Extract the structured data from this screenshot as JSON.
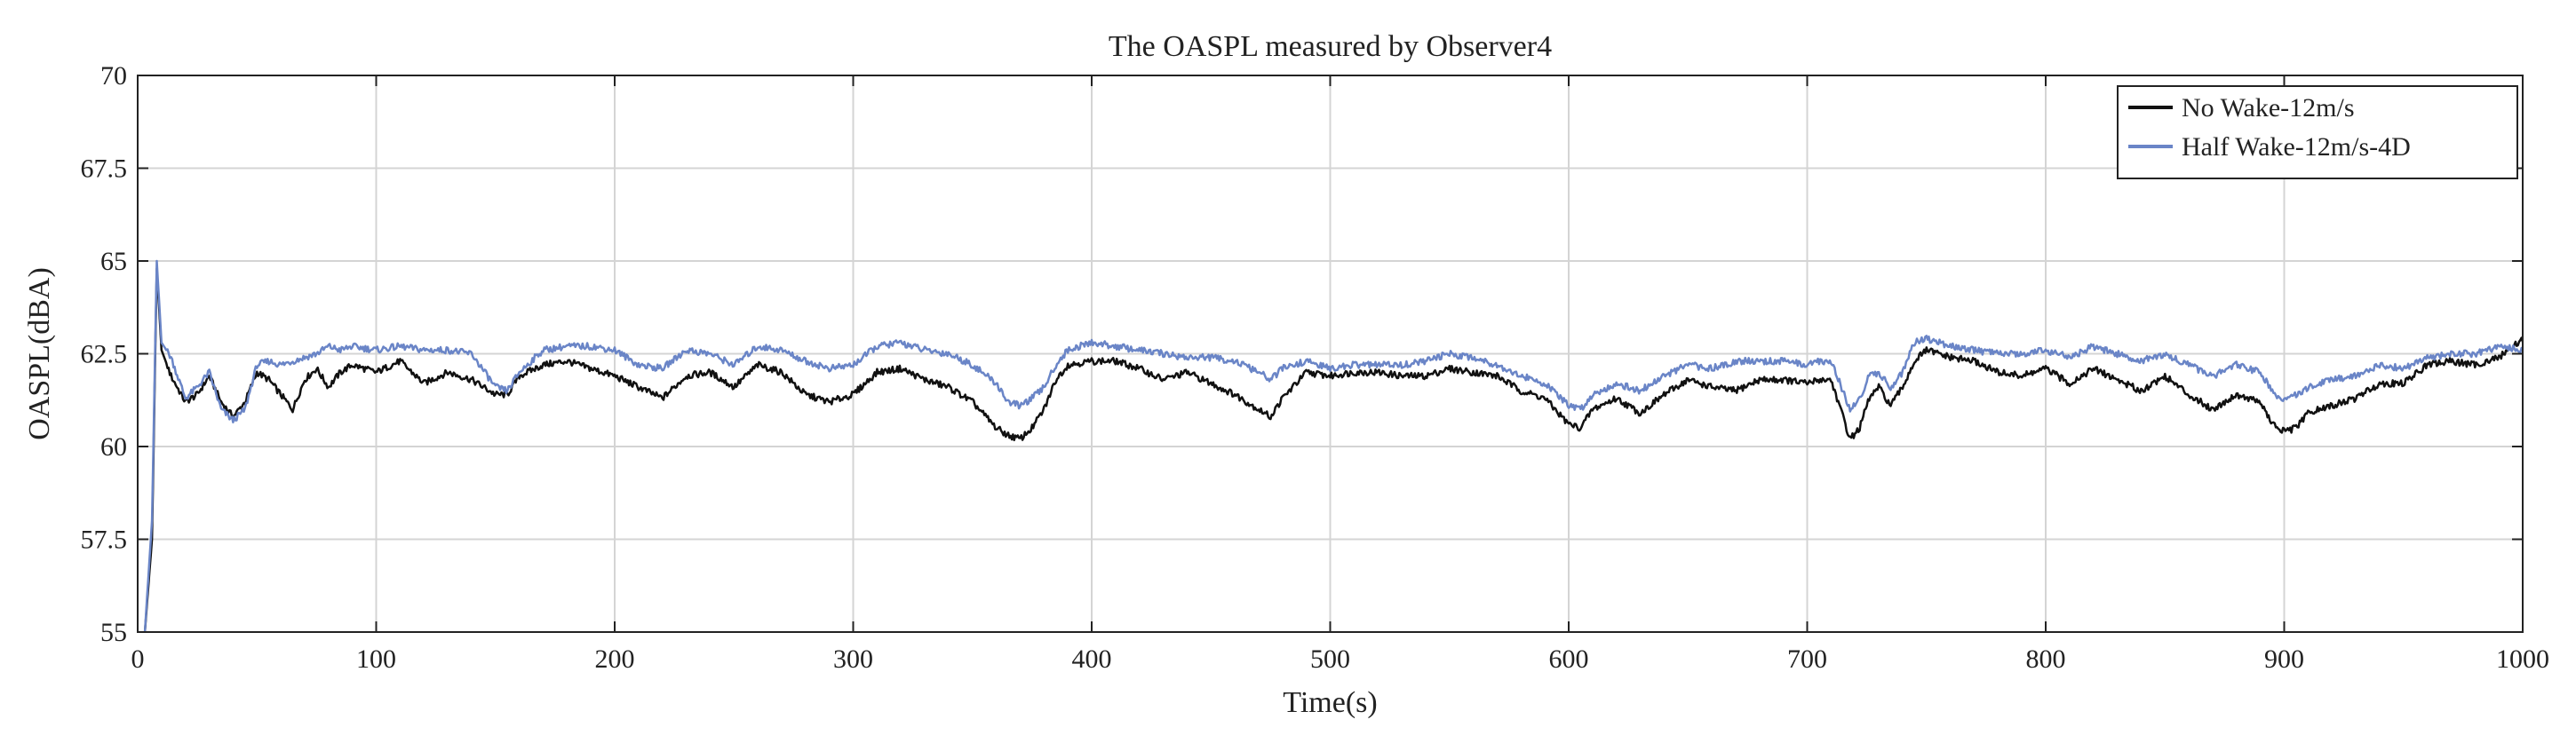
{
  "chart_data": {
    "type": "line",
    "title": "The OASPL measured by Observer4",
    "xlabel": "Time(s)",
    "ylabel": "OASPL(dBA)",
    "xlim": [
      0,
      1000
    ],
    "ylim": [
      55,
      70
    ],
    "xticks": [
      0,
      100,
      200,
      300,
      400,
      500,
      600,
      700,
      800,
      900,
      1000
    ],
    "yticks": [
      55,
      57.5,
      60,
      62.5,
      65,
      67.5,
      70
    ],
    "xtick_labels": [
      "0",
      "100",
      "200",
      "300",
      "400",
      "500",
      "600",
      "700",
      "800",
      "900",
      "1000"
    ],
    "ytick_labels": [
      "55",
      "57.5",
      "60",
      "62.5",
      "65",
      "67.5",
      "70"
    ],
    "grid": true,
    "legend_position": "top-right",
    "series": [
      {
        "name": "No Wake-12m/s",
        "color": "#111111",
        "x": [
          3,
          6,
          8,
          10,
          14,
          20,
          25,
          30,
          35,
          40,
          45,
          50,
          55,
          60,
          65,
          70,
          75,
          80,
          85,
          90,
          100,
          110,
          120,
          130,
          140,
          150,
          155,
          160,
          170,
          180,
          190,
          200,
          210,
          220,
          230,
          240,
          250,
          260,
          270,
          280,
          290,
          300,
          310,
          320,
          330,
          340,
          350,
          360,
          365,
          370,
          375,
          380,
          385,
          390,
          400,
          410,
          420,
          430,
          440,
          450,
          460,
          470,
          475,
          480,
          490,
          500,
          510,
          520,
          530,
          540,
          550,
          560,
          570,
          580,
          590,
          600,
          605,
          610,
          620,
          630,
          640,
          650,
          660,
          670,
          680,
          690,
          700,
          705,
          710,
          715,
          718,
          722,
          726,
          730,
          735,
          740,
          745,
          750,
          760,
          770,
          780,
          790,
          800,
          810,
          820,
          830,
          840,
          850,
          860,
          870,
          880,
          890,
          895,
          900,
          905,
          910,
          920,
          930,
          940,
          950,
          960,
          970,
          980,
          990,
          1000
        ],
        "values": [
          55,
          57.5,
          64.8,
          62.6,
          61.9,
          61.2,
          61.4,
          61.9,
          61.2,
          60.8,
          61.2,
          62.0,
          61.8,
          61.4,
          61.0,
          61.8,
          62.1,
          61.6,
          62.0,
          62.2,
          62.0,
          62.3,
          61.7,
          62.0,
          61.8,
          61.4,
          61.4,
          61.9,
          62.2,
          62.3,
          62.1,
          61.9,
          61.6,
          61.3,
          61.9,
          62.0,
          61.6,
          62.2,
          62.0,
          61.4,
          61.2,
          61.4,
          62.0,
          62.1,
          61.8,
          61.6,
          61.2,
          60.5,
          60.3,
          60.2,
          60.5,
          61.0,
          61.8,
          62.2,
          62.3,
          62.3,
          62.1,
          61.8,
          62.0,
          61.7,
          61.4,
          61.0,
          60.8,
          61.3,
          62.0,
          61.9,
          62.0,
          62.0,
          61.9,
          61.9,
          62.1,
          62.0,
          61.9,
          61.5,
          61.3,
          60.6,
          60.5,
          61.0,
          61.3,
          60.9,
          61.4,
          61.8,
          61.6,
          61.5,
          61.8,
          61.8,
          61.7,
          61.8,
          61.8,
          60.8,
          60.2,
          60.5,
          61.3,
          61.6,
          61.1,
          61.6,
          62.3,
          62.6,
          62.4,
          62.3,
          62.0,
          61.9,
          62.1,
          61.7,
          62.1,
          61.8,
          61.5,
          61.9,
          61.4,
          61.0,
          61.4,
          61.2,
          60.6,
          60.4,
          60.5,
          60.9,
          61.1,
          61.3,
          61.7,
          61.7,
          62.2,
          62.3,
          62.2,
          62.4,
          62.9
        ]
      },
      {
        "name": "Half Wake-12m/s-4D",
        "color": "#6a85c7",
        "x": [
          3,
          6,
          8,
          10,
          14,
          20,
          25,
          30,
          35,
          40,
          45,
          50,
          55,
          60,
          65,
          70,
          75,
          80,
          85,
          90,
          100,
          110,
          120,
          130,
          140,
          150,
          155,
          160,
          170,
          180,
          190,
          200,
          210,
          220,
          230,
          240,
          250,
          260,
          270,
          280,
          290,
          300,
          310,
          320,
          330,
          340,
          350,
          360,
          365,
          370,
          375,
          380,
          385,
          390,
          400,
          410,
          420,
          430,
          440,
          450,
          460,
          470,
          475,
          480,
          490,
          500,
          510,
          520,
          530,
          540,
          550,
          560,
          570,
          580,
          590,
          600,
          605,
          610,
          620,
          630,
          640,
          650,
          660,
          670,
          680,
          690,
          700,
          705,
          710,
          715,
          718,
          722,
          726,
          730,
          735,
          740,
          745,
          750,
          760,
          770,
          780,
          790,
          800,
          810,
          820,
          830,
          840,
          850,
          860,
          870,
          880,
          890,
          895,
          900,
          905,
          910,
          920,
          930,
          940,
          950,
          960,
          970,
          980,
          990,
          1000
        ],
        "values": [
          55,
          58.0,
          65.0,
          62.8,
          62.4,
          61.3,
          61.6,
          62.0,
          61.0,
          60.7,
          61.0,
          62.2,
          62.3,
          62.2,
          62.3,
          62.4,
          62.5,
          62.7,
          62.6,
          62.7,
          62.6,
          62.7,
          62.6,
          62.6,
          62.5,
          61.6,
          61.5,
          62.0,
          62.6,
          62.7,
          62.7,
          62.6,
          62.2,
          62.1,
          62.6,
          62.5,
          62.2,
          62.7,
          62.6,
          62.3,
          62.1,
          62.2,
          62.7,
          62.8,
          62.6,
          62.5,
          62.2,
          61.7,
          61.2,
          61.1,
          61.3,
          61.6,
          62.2,
          62.6,
          62.8,
          62.7,
          62.6,
          62.5,
          62.4,
          62.4,
          62.3,
          62.0,
          61.8,
          62.1,
          62.3,
          62.1,
          62.2,
          62.2,
          62.2,
          62.3,
          62.5,
          62.4,
          62.2,
          61.9,
          61.7,
          61.1,
          61.0,
          61.4,
          61.7,
          61.5,
          61.9,
          62.2,
          62.1,
          62.3,
          62.3,
          62.3,
          62.2,
          62.3,
          62.3,
          61.5,
          61.0,
          61.3,
          61.9,
          62.0,
          61.6,
          62.0,
          62.8,
          62.9,
          62.7,
          62.6,
          62.5,
          62.5,
          62.6,
          62.4,
          62.7,
          62.5,
          62.3,
          62.5,
          62.2,
          61.9,
          62.2,
          62.0,
          61.5,
          61.2,
          61.4,
          61.6,
          61.8,
          61.9,
          62.2,
          62.1,
          62.4,
          62.5,
          62.5,
          62.7,
          62.6
        ]
      }
    ]
  }
}
